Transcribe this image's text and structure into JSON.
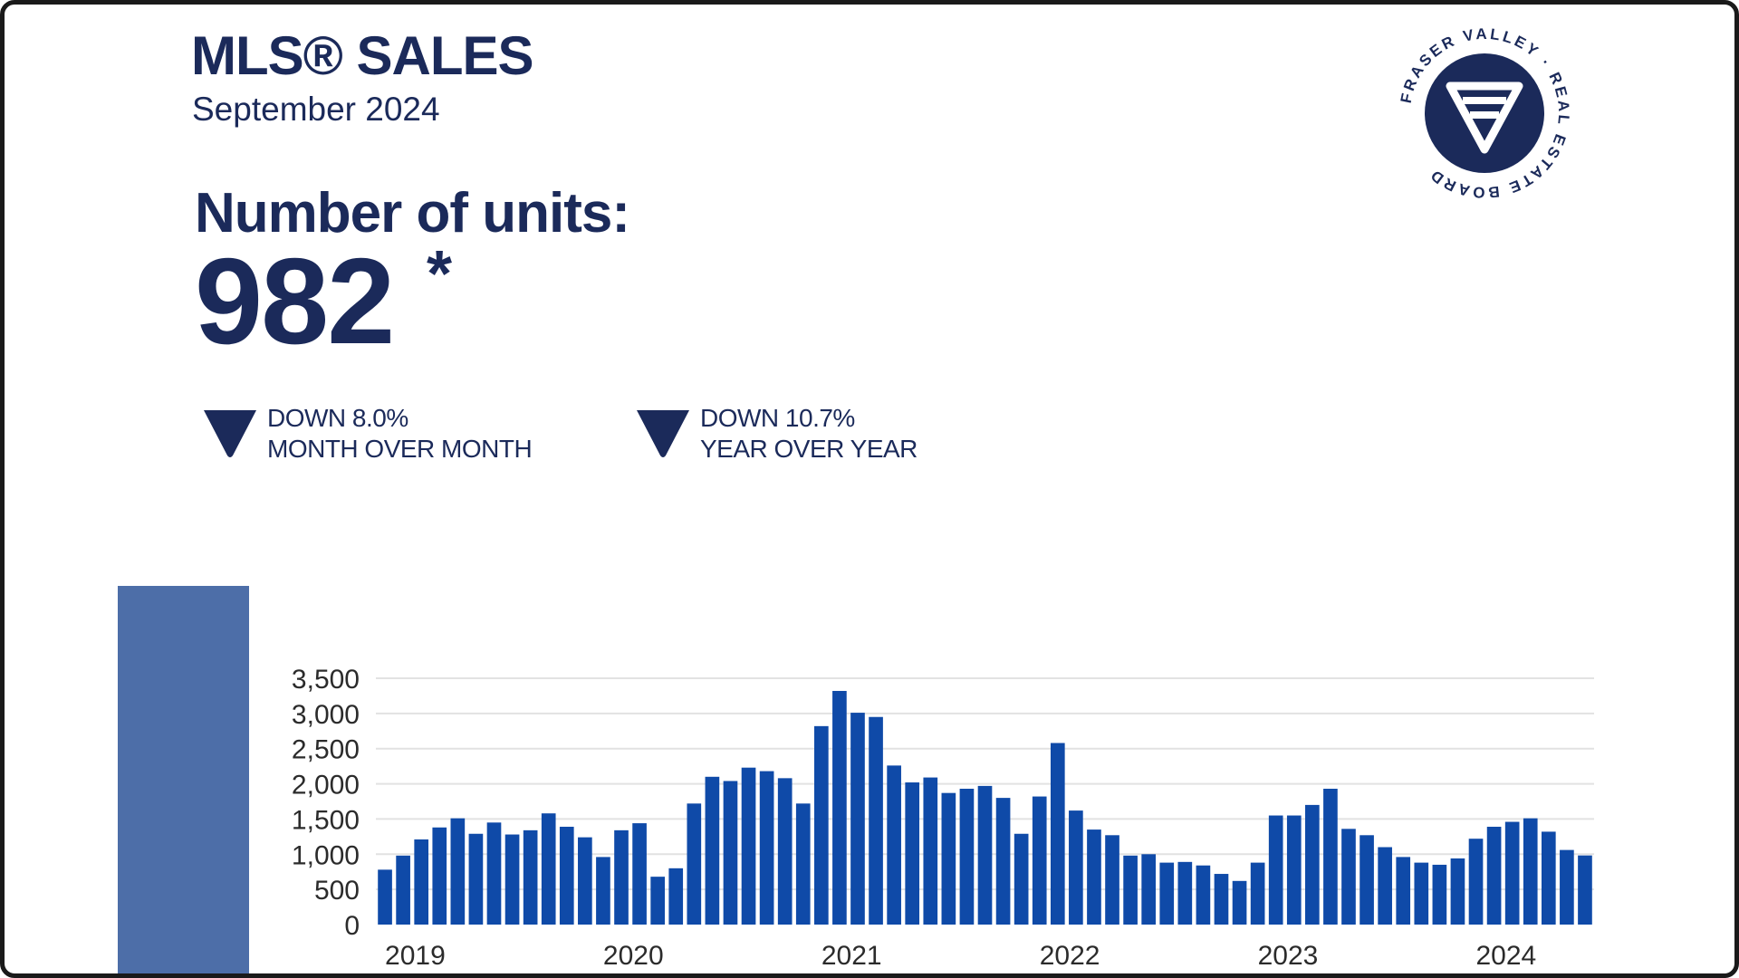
{
  "header": {
    "title": "MLS® SALES",
    "subtitle": "September 2024"
  },
  "summary": {
    "units_label": "Number of units:",
    "units_value": "982",
    "asterisk": "*"
  },
  "changes": {
    "mom": {
      "line1": "DOWN 8.0%",
      "line2": "MONTH OVER MONTH"
    },
    "yoy": {
      "line1": "DOWN 10.7%",
      "line2": "YEAR OVER YEAR"
    }
  },
  "logo": {
    "icon": "fraser-valley-logo-icon",
    "ring_text": "FRASER VALLEY · REAL ESTATE BOARD"
  },
  "colors": {
    "navy": "#1b2a5a",
    "bar": "#0f4aa8",
    "sidebar": "#4d6ea8",
    "grid": "#e2e2e2"
  },
  "chart_data": {
    "type": "bar",
    "ylim": [
      0,
      3500
    ],
    "yticks": [
      0,
      500,
      1000,
      1500,
      2000,
      2500,
      3000,
      3500
    ],
    "ytick_labels": [
      "0",
      "500",
      "1,000",
      "1,500",
      "2,000",
      "2,500",
      "3,000",
      "3,500"
    ],
    "year_labels": [
      "2019",
      "2020",
      "2021",
      "2022",
      "2023",
      "2024"
    ],
    "values": [
      780,
      980,
      1210,
      1380,
      1510,
      1290,
      1450,
      1280,
      1340,
      1580,
      1390,
      1240,
      960,
      1340,
      1440,
      680,
      800,
      1720,
      2100,
      2040,
      2230,
      2180,
      2080,
      1720,
      2820,
      3320,
      3010,
      2950,
      2260,
      2020,
      2090,
      1870,
      1930,
      1970,
      1800,
      1290,
      1820,
      2580,
      1620,
      1350,
      1270,
      980,
      1000,
      880,
      890,
      840,
      720,
      620,
      880,
      1550,
      1550,
      1700,
      1930,
      1360,
      1270,
      1100,
      960,
      880,
      850,
      940,
      1220,
      1390,
      1460,
      1510,
      1320,
      1060,
      982
    ]
  }
}
